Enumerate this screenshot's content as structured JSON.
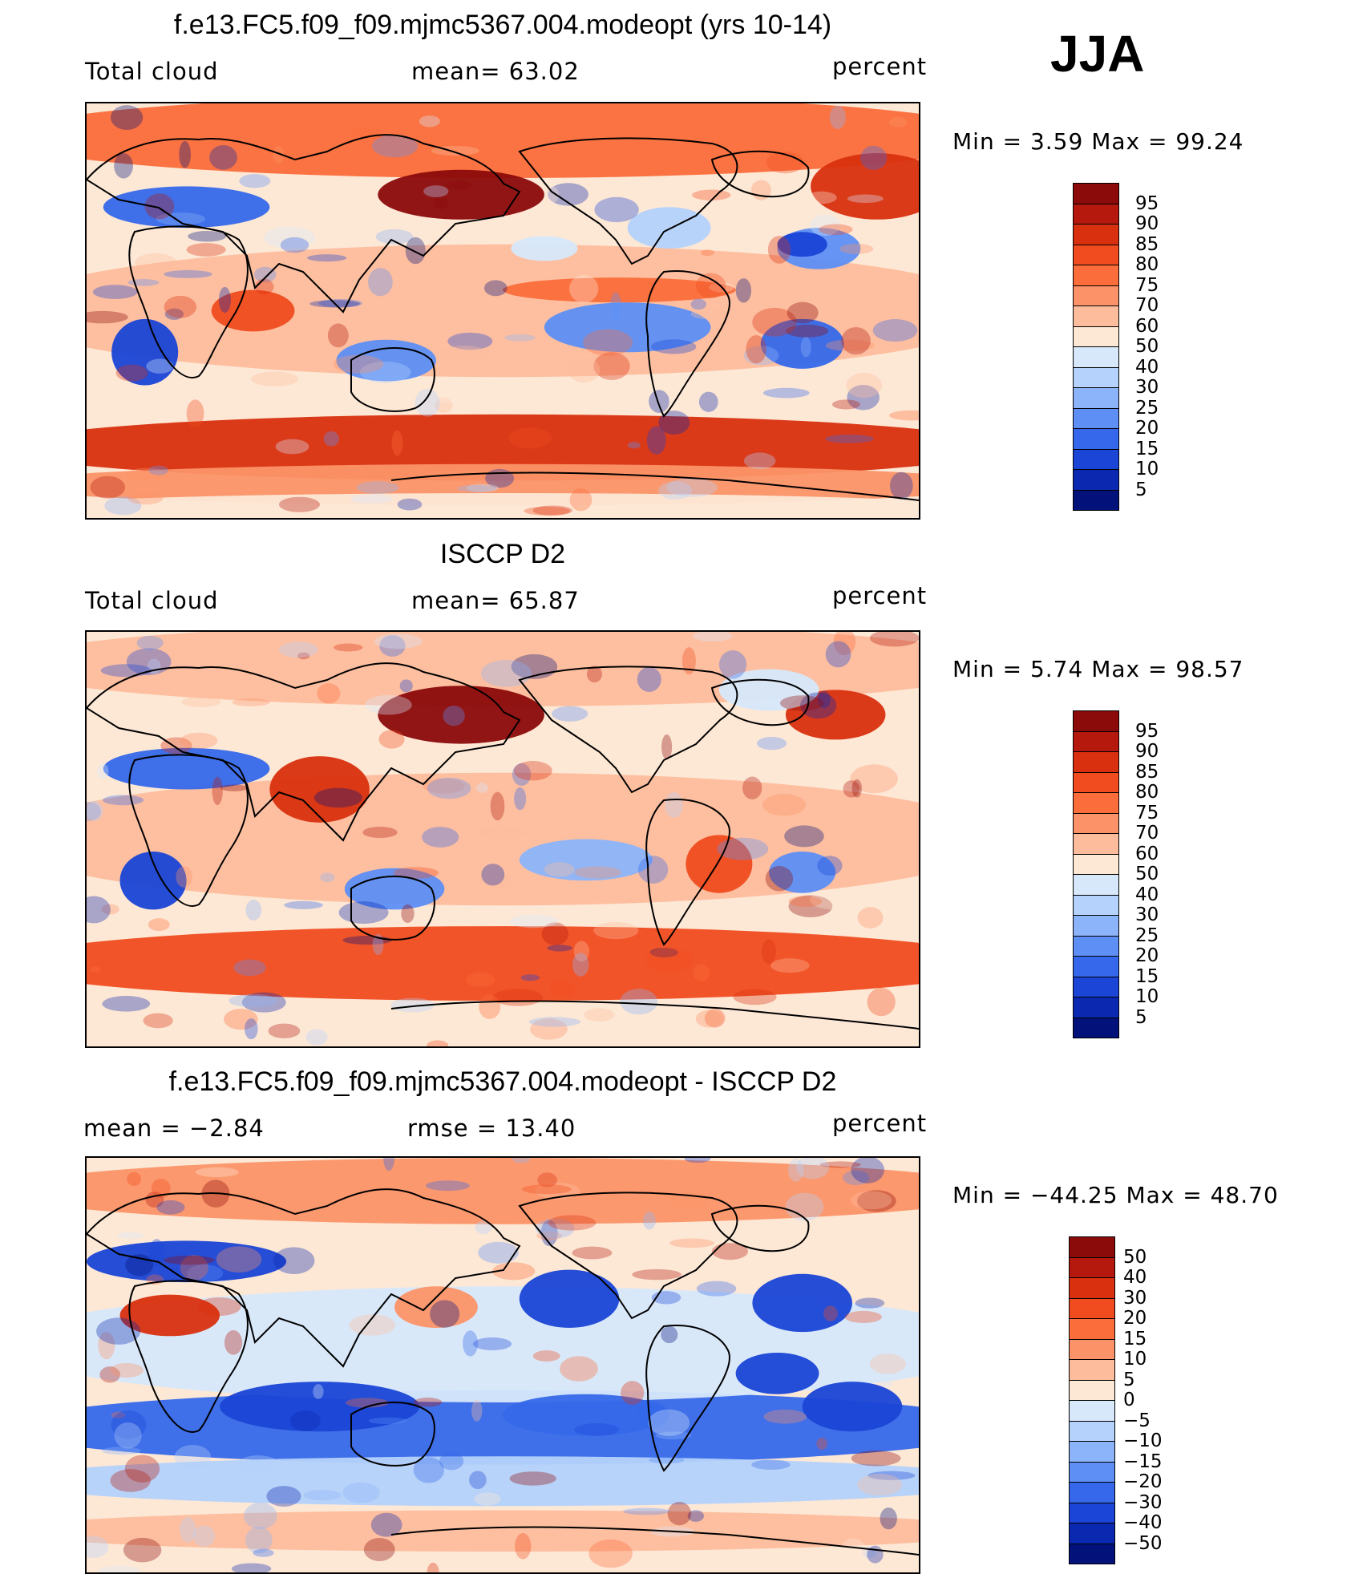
{
  "season": "JJA",
  "panels": [
    {
      "title": "f.e13.FC5.f09_f09.mjmc5367.004.modeopt (yrs 10-14)",
      "left_label": "Total cloud",
      "mid_label": "mean=  63.02",
      "units": "percent",
      "minmax": "Min =    3.59  Max =   99.24",
      "kind": "abs",
      "seed": 1
    },
    {
      "title": "ISCCP D2",
      "left_label": "Total cloud",
      "mid_label": "mean=  65.87",
      "units": "percent",
      "minmax": "Min =    5.74  Max =   98.57",
      "kind": "abs",
      "seed": 2
    },
    {
      "title": "f.e13.FC5.f09_f09.mjmc5367.004.modeopt - ISCCP D2",
      "left_label": "mean =   −2.84",
      "mid_label": "rmse =   13.40",
      "units": "percent",
      "minmax": "Min = −44.25  Max =   48.70",
      "kind": "diff",
      "seed": 3
    }
  ],
  "colorbars": {
    "abs": {
      "labels": [
        "95",
        "90",
        "85",
        "80",
        "75",
        "70",
        "60",
        "50",
        "40",
        "30",
        "25",
        "20",
        "15",
        "10",
        "5"
      ],
      "colors": [
        "#8b0a0a",
        "#b5190d",
        "#d9300f",
        "#f04c1f",
        "#fb6d3a",
        "#fc9368",
        "#fdbd9d",
        "#fde8d6",
        "#d7e8fb",
        "#b4d2fb",
        "#8bb4fa",
        "#5d8ff5",
        "#3568ea",
        "#1a45d6",
        "#0b29b0",
        "#03127a"
      ]
    },
    "diff": {
      "labels": [
        "50",
        "40",
        "30",
        "20",
        "15",
        "10",
        "5",
        "0",
        "−5",
        "−10",
        "−15",
        "−20",
        "−30",
        "−40",
        "−50"
      ],
      "colors": [
        "#8b0a0a",
        "#b5190d",
        "#d9300f",
        "#f04c1f",
        "#fb6d3a",
        "#fc9368",
        "#fdbd9d",
        "#fde8d6",
        "#d7e8fb",
        "#b4d2fb",
        "#8bb4fa",
        "#5d8ff5",
        "#3568ea",
        "#1a45d6",
        "#0b29b0",
        "#03127a"
      ]
    }
  }
}
